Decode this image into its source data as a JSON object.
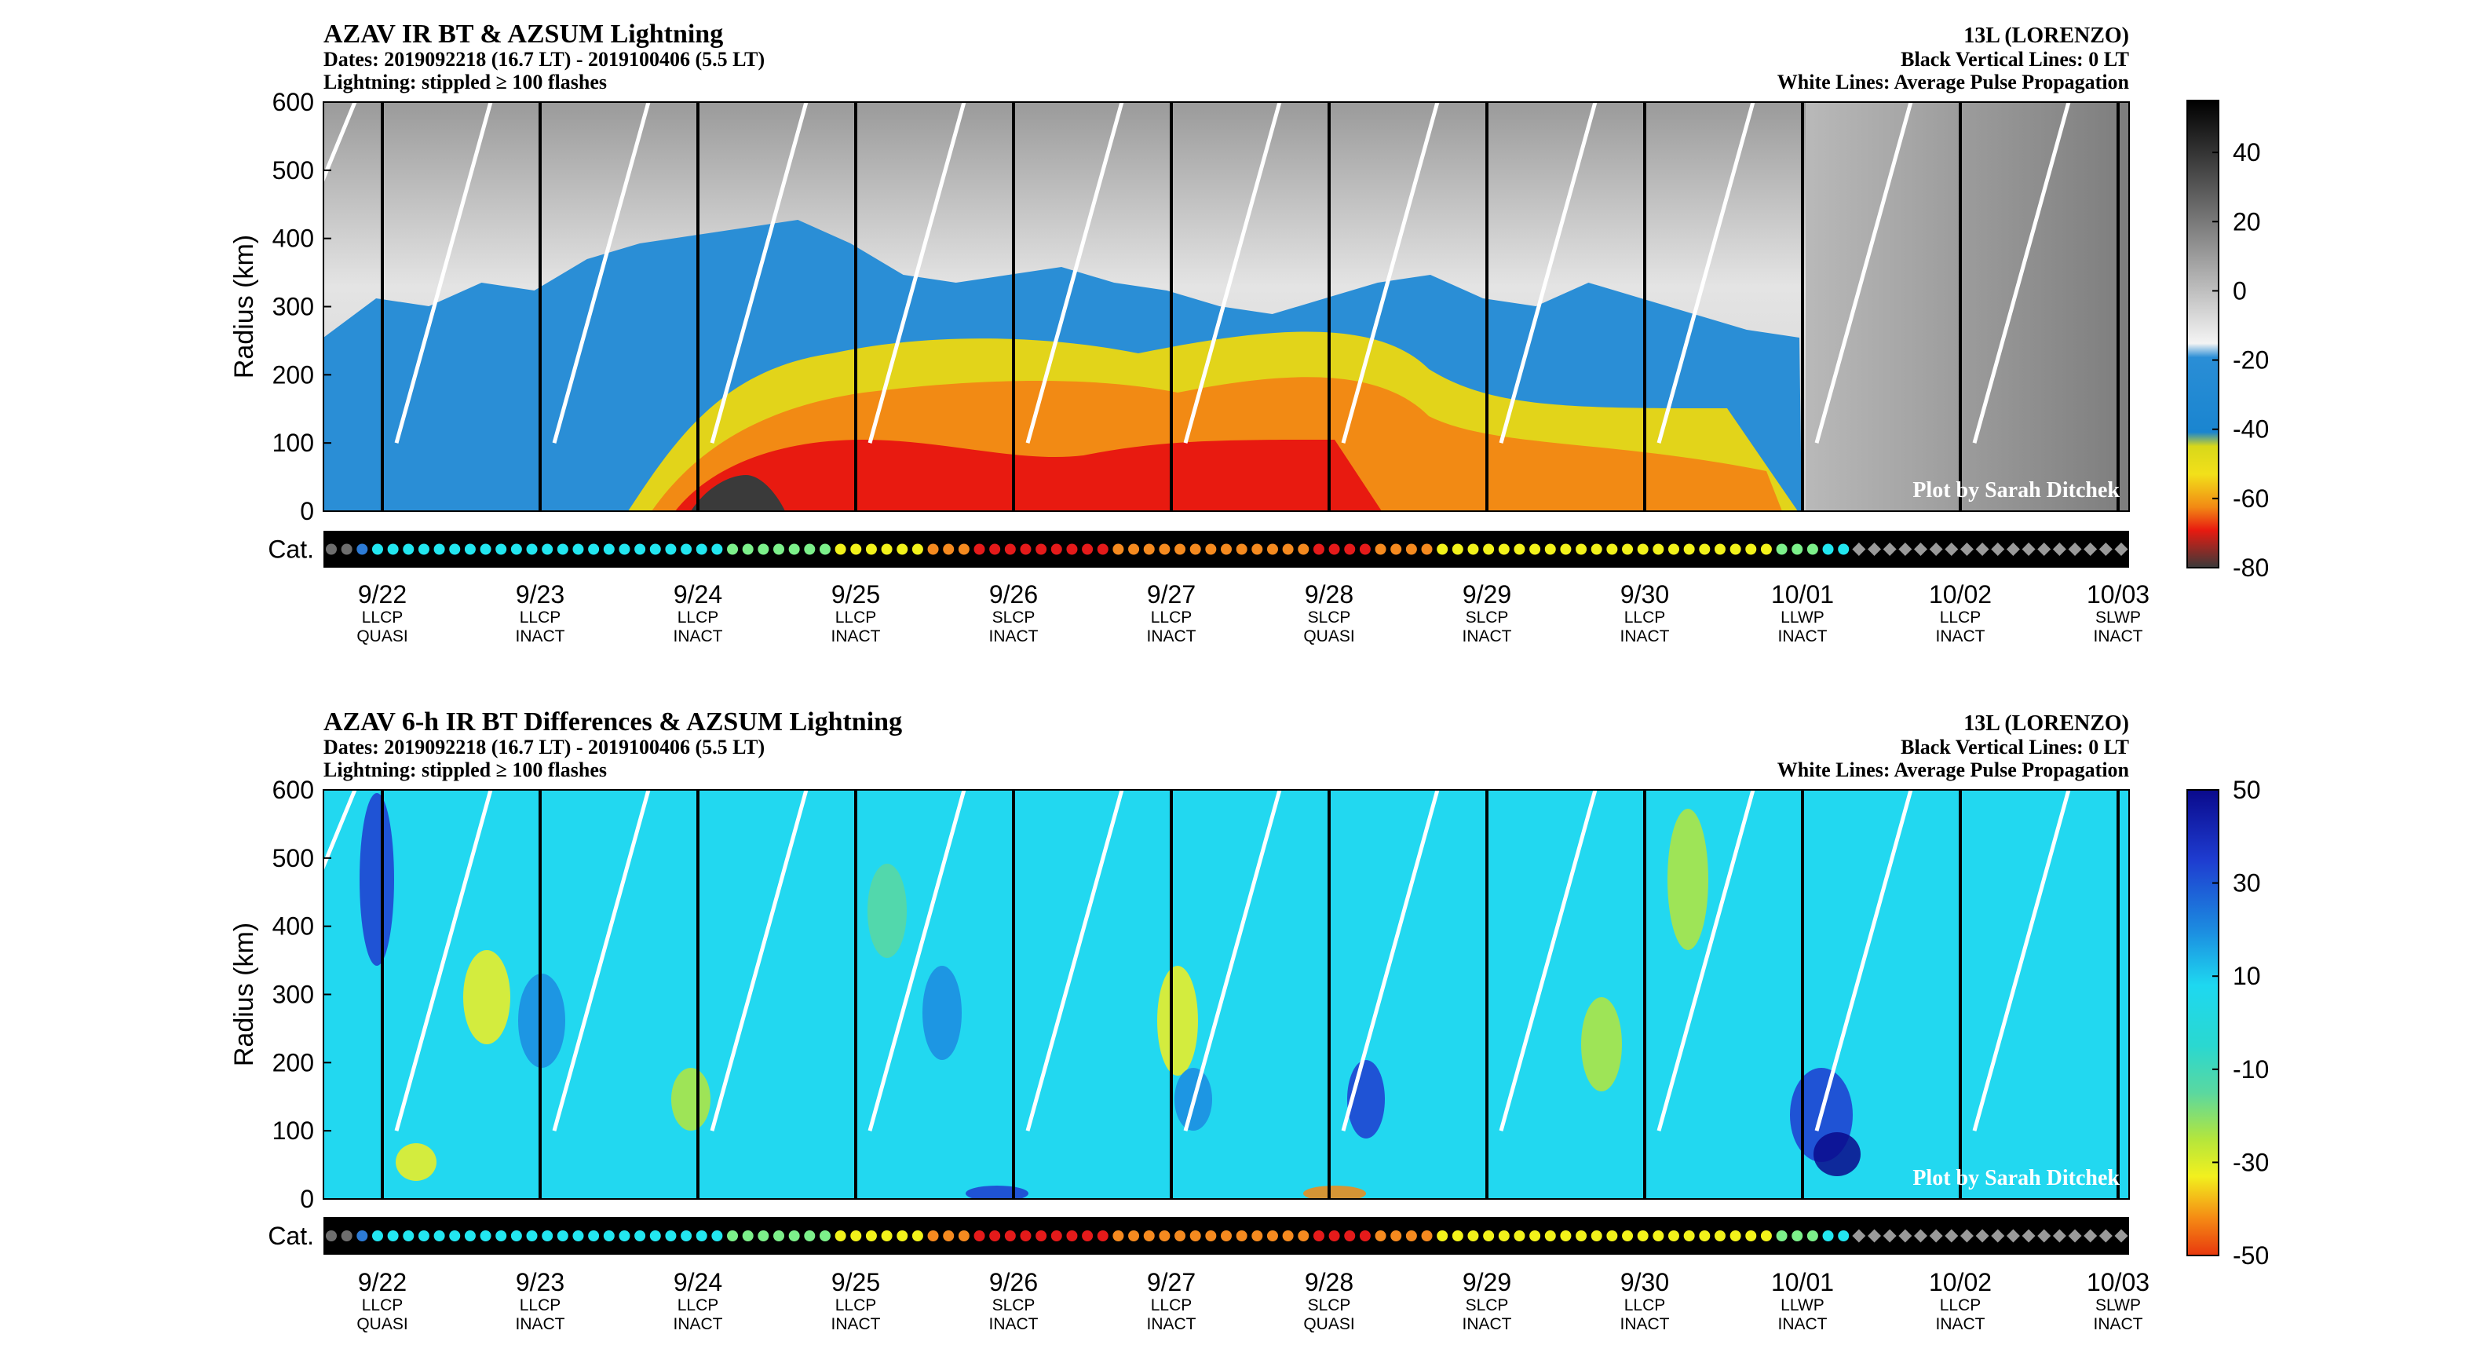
{
  "chart_data": [
    {
      "type": "heatmap",
      "title": "AZAV IR BT & AZSUM Lightning",
      "subtitle_dates": "Dates: 2019092218 (16.7 LT) - 2019100406 (5.5 LT)",
      "subtitle_lightning": "Lightning: stippled ≥ 100 flashes",
      "storm": "13L (LORENZO)",
      "note_black": "Black Vertical Lines: 0 LT",
      "note_white": "White Lines: Average Pulse Propagation",
      "ylabel": "Radius (km)",
      "ylim": [
        0,
        600
      ],
      "yticks": [
        "0",
        "100",
        "200",
        "300",
        "400",
        "500",
        "600"
      ],
      "colorbar_ticks": [
        "40",
        "20",
        "0",
        "-20",
        "-40",
        "-60",
        "-80"
      ],
      "colorbar_range": [
        -80,
        55
      ],
      "category_label": "Cat.",
      "watermark": "Plot by Sarah Ditchek",
      "dates": [
        "9/22",
        "9/23",
        "9/24",
        "9/25",
        "9/26",
        "9/27",
        "9/28",
        "9/29",
        "9/30",
        "10/01",
        "10/02",
        "10/03"
      ],
      "shear": [
        "LLCP",
        "LLCP",
        "LLCP",
        "LLCP",
        "SLCP",
        "LLCP",
        "SLCP",
        "SLCP",
        "LLCP",
        "LLWP",
        "LLCP",
        "SLWP"
      ],
      "phase": [
        "QUASI",
        "INACT",
        "INACT",
        "INACT",
        "INACT",
        "INACT",
        "QUASI",
        "INACT",
        "INACT",
        "INACT",
        "INACT",
        "INACT"
      ]
    },
    {
      "type": "heatmap",
      "title": "AZAV 6-h IR BT Differences & AZSUM Lightning",
      "subtitle_dates": "Dates: 2019092218 (16.7 LT) - 2019100406 (5.5 LT)",
      "subtitle_lightning": "Lightning: stippled ≥ 100 flashes",
      "storm": "13L (LORENZO)",
      "note_black": "Black Vertical Lines: 0 LT",
      "note_white": "White Lines: Average Pulse Propagation",
      "ylabel": "Radius (km)",
      "ylim": [
        0,
        600
      ],
      "yticks": [
        "0",
        "100",
        "200",
        "300",
        "400",
        "500",
        "600"
      ],
      "colorbar_ticks": [
        "50",
        "30",
        "10",
        "-10",
        "-30",
        "-50"
      ],
      "colorbar_range": [
        -50,
        50
      ],
      "category_label": "Cat.",
      "watermark": "Plot by Sarah Ditchek",
      "dates": [
        "9/22",
        "9/23",
        "9/24",
        "9/25",
        "9/26",
        "9/27",
        "9/28",
        "9/29",
        "9/30",
        "10/01",
        "10/02",
        "10/03"
      ],
      "shear": [
        "LLCP",
        "LLCP",
        "LLCP",
        "LLCP",
        "SLCP",
        "LLCP",
        "SLCP",
        "SLCP",
        "LLCP",
        "LLWP",
        "LLCP",
        "SLWP"
      ],
      "phase": [
        "QUASI",
        "INACT",
        "INACT",
        "INACT",
        "INACT",
        "INACT",
        "QUASI",
        "INACT",
        "INACT",
        "INACT",
        "INACT",
        "INACT"
      ]
    }
  ],
  "category_colors": {
    "TD": "#6e6e6e",
    "TS": "#2d7bd6",
    "H1": "#22e6f0",
    "H2": "#7cf08a",
    "H3": "#f2f21a",
    "H4": "#f58a1f",
    "H5": "#e51a1a",
    "PT": "#9a9a9a"
  },
  "category_sequence": [
    "TD",
    "TD",
    "TS",
    "H1",
    "H1",
    "H1",
    "H1",
    "H1",
    "H1",
    "H1",
    "H1",
    "H1",
    "H1",
    "H1",
    "H1",
    "H1",
    "H1",
    "H1",
    "H1",
    "H1",
    "H1",
    "H1",
    "H1",
    "H1",
    "H1",
    "H1",
    "H2",
    "H2",
    "H2",
    "H2",
    "H2",
    "H2",
    "H2",
    "H3",
    "H3",
    "H3",
    "H3",
    "H3",
    "H3",
    "H4",
    "H4",
    "H4",
    "H5",
    "H5",
    "H5",
    "H5",
    "H5",
    "H5",
    "H5",
    "H5",
    "H5",
    "H4",
    "H4",
    "H4",
    "H4",
    "H4",
    "H4",
    "H4",
    "H4",
    "H4",
    "H4",
    "H4",
    "H4",
    "H4",
    "H5",
    "H5",
    "H5",
    "H5",
    "H4",
    "H4",
    "H4",
    "H4",
    "H3",
    "H3",
    "H3",
    "H3",
    "H3",
    "H3",
    "H3",
    "H3",
    "H3",
    "H3",
    "H3",
    "H3",
    "H3",
    "H3",
    "H3",
    "H3",
    "H3",
    "H3",
    "H3",
    "H3",
    "H3",
    "H3",
    "H2",
    "H2",
    "H2",
    "H1",
    "H1",
    "PT",
    "PT",
    "PT",
    "PT",
    "PT",
    "PT",
    "PT",
    "PT",
    "PT",
    "PT",
    "PT",
    "PT",
    "PT",
    "PT",
    "PT",
    "PT",
    "PT",
    "PT"
  ]
}
